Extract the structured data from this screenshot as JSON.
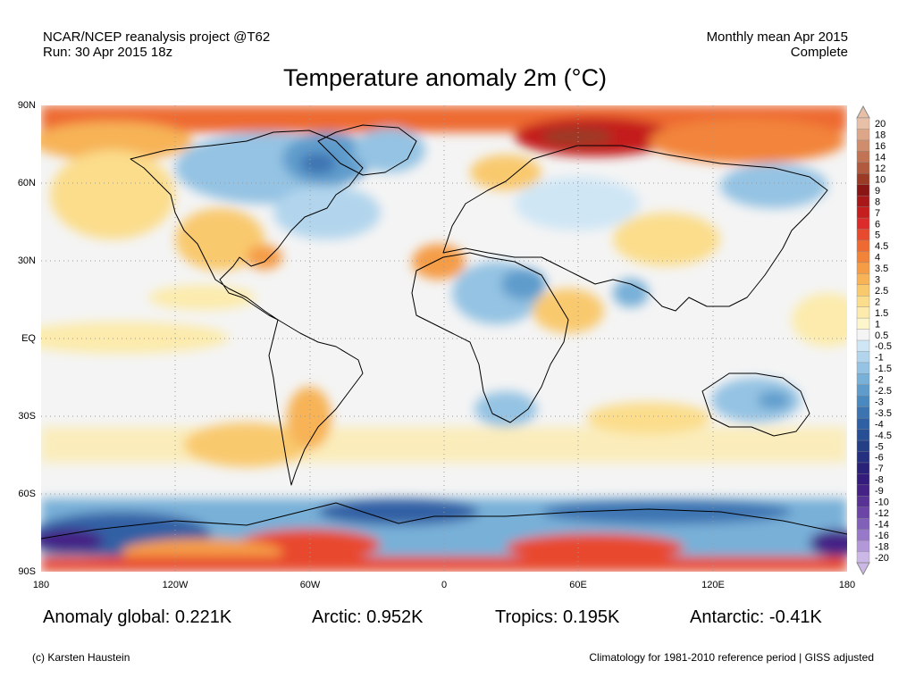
{
  "header": {
    "left_line1": "NCAR/NCEP reanalysis project @T62",
    "left_line2": "Run: 30 Apr 2015 18z",
    "right_line1": "Monthly mean Apr 2015",
    "right_line2": "Complete"
  },
  "title": "Temperature anomaly 2m (°C)",
  "axes": {
    "y_ticks": [
      "90N",
      "60N",
      "30N",
      "EQ",
      "30S",
      "60S",
      "90S"
    ],
    "x_ticks": [
      "180",
      "120W",
      "60W",
      "0",
      "60E",
      "120E",
      "180"
    ]
  },
  "stats": {
    "global": "Anomaly global: 0.221K",
    "arctic": "Arctic: 0.952K",
    "tropics": "Tropics: 0.195K",
    "antarctic": "Antarctic: -0.41K"
  },
  "footer": {
    "credit": "(c) Karsten Haustein",
    "note": "Climatology for 1981-2010 reference period | GISS adjusted"
  },
  "colorbar": {
    "labels": [
      "20",
      "18",
      "16",
      "14",
      "12",
      "10",
      "9",
      "8",
      "7",
      "6",
      "5",
      "4.5",
      "4",
      "3.5",
      "3",
      "2.5",
      "2",
      "1.5",
      "1",
      "0.5",
      "-0.5",
      "-1",
      "-1.5",
      "-2",
      "-2.5",
      "-3",
      "-3.5",
      "-4",
      "-4.5",
      "-5",
      "-6",
      "-7",
      "-8",
      "-9",
      "-10",
      "-12",
      "-14",
      "-16",
      "-18",
      "-20"
    ],
    "colors": [
      "#e8c0a8",
      "#dda688",
      "#d08d6d",
      "#c27354",
      "#b25a3e",
      "#9b3b25",
      "#8a1515",
      "#a81818",
      "#c41e1e",
      "#dc2b2b",
      "#e84a2e",
      "#ee6a32",
      "#f2843a",
      "#f59c46",
      "#f7b356",
      "#f9c96e",
      "#fbdd8c",
      "#fcebac",
      "#fdf5cc",
      "#f4f4f4",
      "#cfe6f5",
      "#b2d5ed",
      "#94c3e3",
      "#78b0d8",
      "#5f9ccc",
      "#4a88c0",
      "#3c74b2",
      "#3060a4",
      "#284e96",
      "#253f86",
      "#263080",
      "#2a2278",
      "#341c7c",
      "#442286",
      "#583294",
      "#6c46a6",
      "#8060b8",
      "#9878c8",
      "#b298d8",
      "#cbb8e6"
    ]
  }
}
